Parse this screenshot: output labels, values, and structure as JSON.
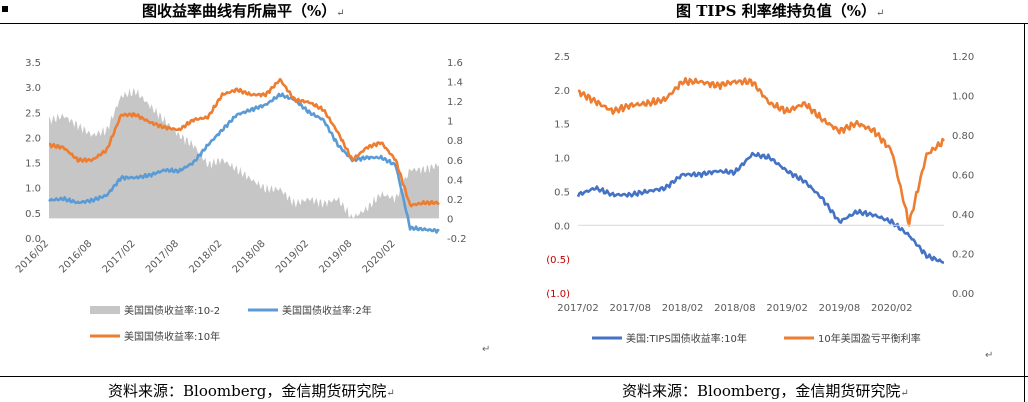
{
  "left_title": "图收益率曲线有所扁平（%）",
  "right_title": "图 TIPS 利率维持负值（%）",
  "source_left": "资料来源：Bloomberg，金信期货研究院",
  "source_right": "资料来源：Bloomberg，金信期货研究院",
  "colors": {
    "spread_area": "#c6c6c6",
    "yield_2y": "#5b9bd5",
    "yield_10y": "#ed7d31",
    "tips_10y": "#4472c4",
    "breakeven_10y": "#ed7d31"
  },
  "chart_data": [
    {
      "type": "line",
      "title": "图收益率曲线有所扁平（%）",
      "x_range": [
        "2016-02",
        "2020-08"
      ],
      "x_ticks": [
        "2016/02",
        "2016/08",
        "2017/02",
        "2017/08",
        "2018/02",
        "2018/08",
        "2019/02",
        "2019/08",
        "2020/02"
      ],
      "y_left": {
        "min": 0.0,
        "max": 3.5,
        "ticks": [
          "0.0",
          "0.5",
          "1.0",
          "1.5",
          "2.0",
          "2.5",
          "3.0",
          "3.5"
        ]
      },
      "y_right": {
        "min": -0.2,
        "max": 1.6,
        "ticks": [
          "-0.2",
          "0",
          "0.2",
          "0.4",
          "0.6",
          "0.8",
          "1",
          "1.2",
          "1.4",
          "1.6"
        ]
      },
      "legend_position": "bottom",
      "x": [
        "2016-02",
        "2016-04",
        "2016-06",
        "2016-08",
        "2016-10",
        "2016-12",
        "2017-02",
        "2017-04",
        "2017-06",
        "2017-08",
        "2017-10",
        "2017-12",
        "2018-02",
        "2018-04",
        "2018-06",
        "2018-08",
        "2018-10",
        "2018-12",
        "2019-02",
        "2019-04",
        "2019-06",
        "2019-08",
        "2019-10",
        "2019-12",
        "2020-02",
        "2020-04",
        "2020-06",
        "2020-08"
      ],
      "series": [
        {
          "name": "美国国债收益率:10-2",
          "type": "area",
          "axis": "right",
          "values": [
            1.0,
            1.05,
            0.95,
            0.85,
            0.9,
            1.25,
            1.3,
            1.15,
            1.0,
            0.85,
            0.75,
            0.55,
            0.6,
            0.5,
            0.4,
            0.3,
            0.3,
            0.15,
            0.2,
            0.15,
            0.2,
            0.0,
            0.1,
            0.25,
            0.2,
            0.5,
            0.5,
            0.55
          ]
        },
        {
          "name": "美国国债收益率:2年",
          "type": "line",
          "axis": "left",
          "values": [
            0.75,
            0.78,
            0.7,
            0.75,
            0.85,
            1.2,
            1.2,
            1.25,
            1.35,
            1.33,
            1.5,
            1.85,
            2.15,
            2.45,
            2.55,
            2.65,
            2.85,
            2.75,
            2.5,
            2.35,
            1.85,
            1.55,
            1.6,
            1.6,
            1.45,
            0.2,
            0.17,
            0.14
          ]
        },
        {
          "name": "美国国债收益率:10年",
          "type": "line",
          "axis": "left",
          "values": [
            1.85,
            1.8,
            1.55,
            1.55,
            1.75,
            2.45,
            2.45,
            2.3,
            2.2,
            2.15,
            2.35,
            2.4,
            2.85,
            2.95,
            2.85,
            2.85,
            3.15,
            2.75,
            2.7,
            2.55,
            2.1,
            1.55,
            1.8,
            1.9,
            1.55,
            0.65,
            0.7,
            0.7
          ]
        }
      ]
    },
    {
      "type": "line",
      "title": "图 TIPS 利率维持负值（%）",
      "x_range": [
        "2017-02",
        "2020-08"
      ],
      "x_ticks": [
        "2017/02",
        "2017/08",
        "2018/02",
        "2018/08",
        "2019/02",
        "2019/08",
        "2020/02"
      ],
      "y_left": {
        "min": -1.0,
        "max": 2.5,
        "ticks": [
          "(1.0)",
          "(0.5)",
          "0.0",
          "0.5",
          "1.0",
          "1.5",
          "2.0",
          "2.5"
        ]
      },
      "y_right": {
        "min": 0.0,
        "max": 1.2,
        "ticks": [
          "0.00",
          "0.20",
          "0.40",
          "0.60",
          "0.80",
          "1.00",
          "1.20"
        ]
      },
      "legend_position": "bottom",
      "x": [
        "2017-02",
        "2017-04",
        "2017-06",
        "2017-08",
        "2017-10",
        "2017-12",
        "2018-02",
        "2018-04",
        "2018-06",
        "2018-08",
        "2018-10",
        "2018-12",
        "2019-02",
        "2019-04",
        "2019-06",
        "2019-08",
        "2019-10",
        "2019-12",
        "2020-02",
        "2020-04",
        "2020-06",
        "2020-08"
      ],
      "series": [
        {
          "name": "美国:TIPS国债收益率:10年",
          "type": "line",
          "axis": "left",
          "values": [
            0.45,
            0.55,
            0.45,
            0.45,
            0.5,
            0.55,
            0.75,
            0.75,
            0.8,
            0.78,
            1.05,
            1.0,
            0.8,
            0.65,
            0.4,
            0.05,
            0.2,
            0.15,
            0.05,
            -0.15,
            -0.45,
            -0.55
          ]
        },
        {
          "name": "10年美国盈亏平衡利率",
          "type": "line",
          "axis": "right",
          "values": [
            1.02,
            0.97,
            0.92,
            0.95,
            0.96,
            0.98,
            1.07,
            1.07,
            1.05,
            1.07,
            1.07,
            0.96,
            0.92,
            0.96,
            0.88,
            0.82,
            0.86,
            0.82,
            0.72,
            0.35,
            0.7,
            0.77
          ]
        }
      ]
    }
  ]
}
